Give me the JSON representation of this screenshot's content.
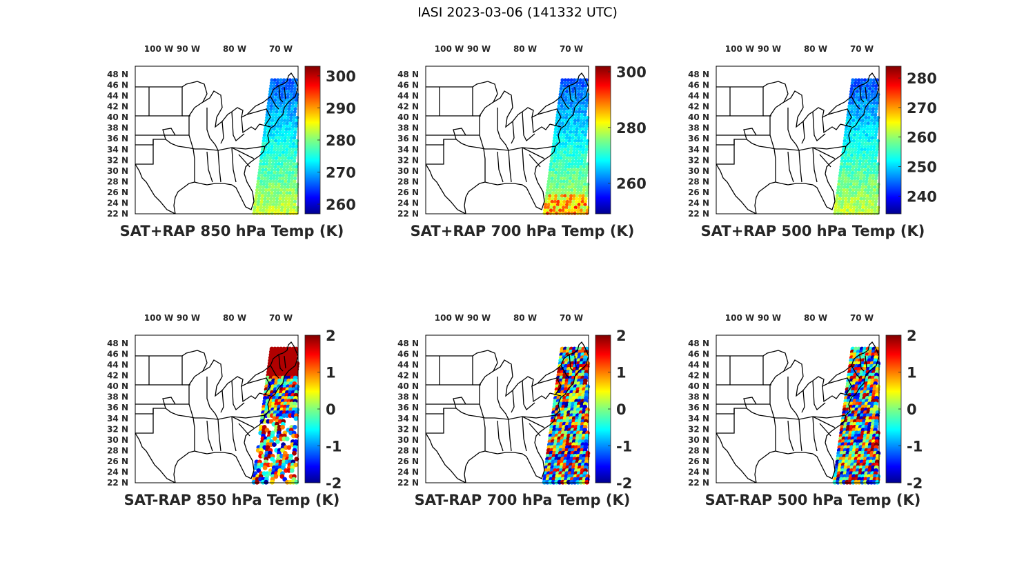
{
  "title": "IASI 2023-03-06 (141332 UTC)",
  "lon_ticks": [
    "100",
    "90",
    "80",
    "70"
  ],
  "lon_suffix": "W",
  "lat_ticks": [
    "48",
    "46",
    "44",
    "42",
    "40",
    "38",
    "36",
    "34",
    "32",
    "30",
    "28",
    "26",
    "24",
    "22"
  ],
  "lat_suffix": "N",
  "colormap": "jet",
  "colors": {
    "frame": "#000000",
    "label": "#262626"
  },
  "panels": [
    {
      "id": "p1",
      "title": "SAT+RAP 850 hPa Temp (K)",
      "cbar_ticks": [
        "300",
        "290",
        "280",
        "270",
        "260"
      ],
      "clim": [
        257,
        303
      ]
    },
    {
      "id": "p2",
      "title": "SAT+RAP 700 hPa Temp (K)",
      "cbar_ticks": [
        "300",
        "280",
        "260"
      ],
      "clim": [
        249,
        302
      ]
    },
    {
      "id": "p3",
      "title": "SAT+RAP 500 hPa Temp (K)",
      "cbar_ticks": [
        "280",
        "270",
        "260",
        "250",
        "240"
      ],
      "clim": [
        234,
        284
      ]
    },
    {
      "id": "p4",
      "title": "SAT-RAP 850 hPa Temp (K)",
      "cbar_ticks": [
        "2",
        "1",
        "0",
        "-1",
        "-2"
      ],
      "clim": [
        -2,
        2
      ]
    },
    {
      "id": "p5",
      "title": "SAT-RAP 700 hPa Temp (K)",
      "cbar_ticks": [
        "2",
        "1",
        "0",
        "-1",
        "-2"
      ],
      "clim": [
        -2,
        2
      ]
    },
    {
      "id": "p6",
      "title": "SAT-RAP 500 hPa Temp (K)",
      "cbar_ticks": [
        "2",
        "1",
        "0",
        "-1",
        "-2"
      ],
      "clim": [
        -2,
        2
      ]
    }
  ]
}
